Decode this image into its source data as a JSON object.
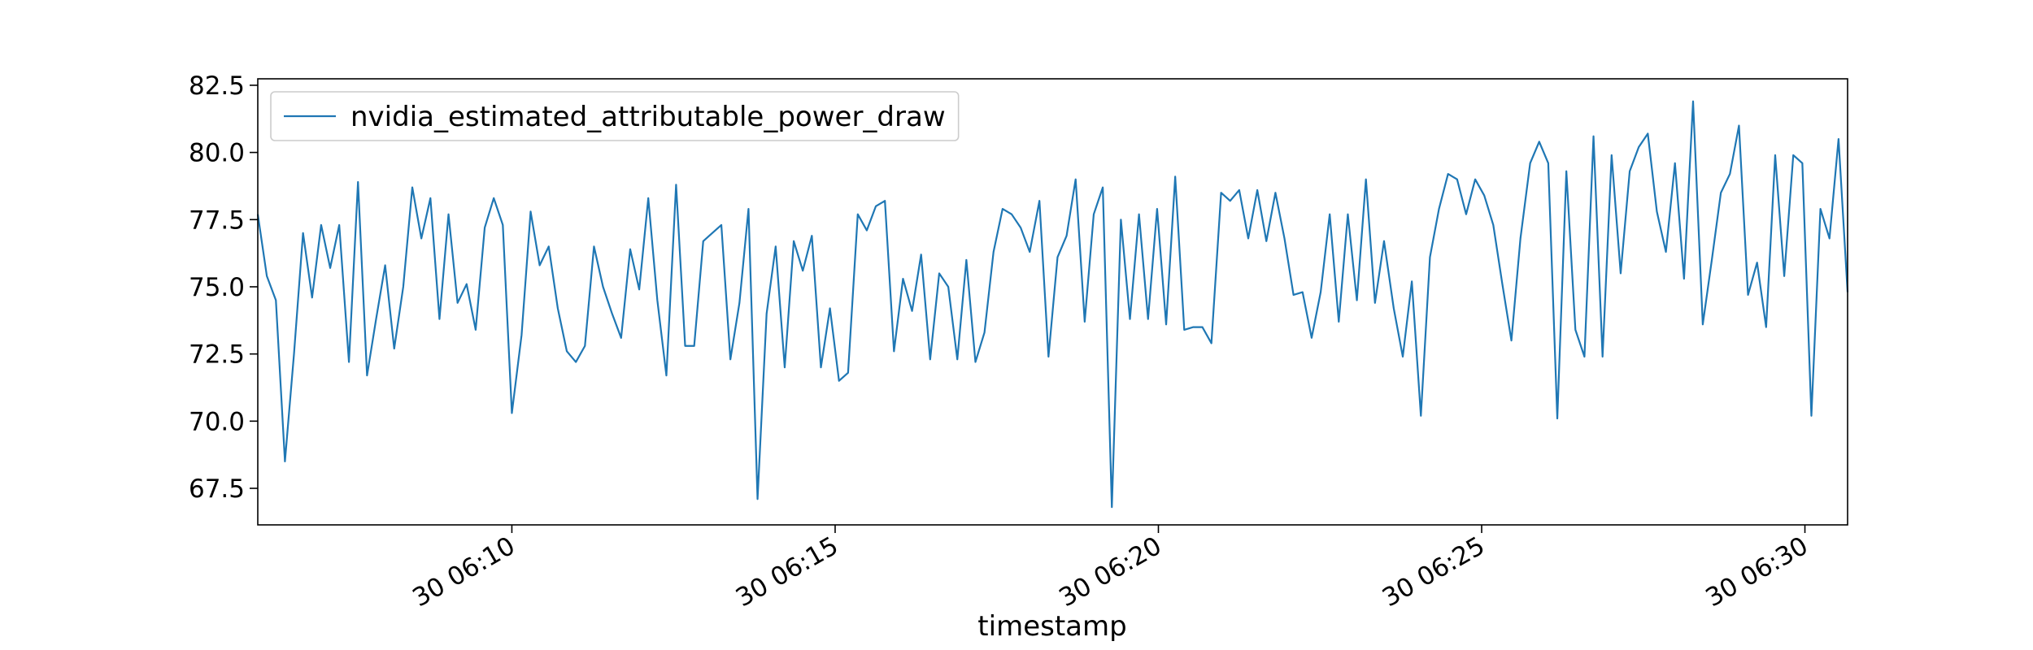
{
  "chart_data": {
    "type": "line",
    "xlabel": "timestamp",
    "legend": "upper left",
    "grid": false,
    "xlim": [
      6.07,
      30.66
    ],
    "ylim": [
      66.14,
      82.74
    ],
    "xticks": [
      {
        "value": 10,
        "label": "30 06:10"
      },
      {
        "value": 15,
        "label": "30 06:15"
      },
      {
        "value": 20,
        "label": "30 06:20"
      },
      {
        "value": 25,
        "label": "30 06:25"
      },
      {
        "value": 30,
        "label": "30 06:30"
      }
    ],
    "yticks": [
      {
        "value": 67.5,
        "label": "67.5"
      },
      {
        "value": 70,
        "label": "70.0"
      },
      {
        "value": 72.5,
        "label": "72.5"
      },
      {
        "value": 75,
        "label": "75.0"
      },
      {
        "value": 77.5,
        "label": "77.5"
      },
      {
        "value": 80,
        "label": "80.0"
      },
      {
        "value": 82.5,
        "label": "82.5"
      }
    ],
    "x": [
      6.07,
      6.21,
      6.35,
      6.49,
      6.63,
      6.77,
      6.91,
      7.05,
      7.19,
      7.33,
      7.48,
      7.62,
      7.76,
      7.9,
      8.04,
      8.18,
      8.32,
      8.46,
      8.6,
      8.74,
      8.88,
      9.02,
      9.16,
      9.3,
      9.44,
      9.58,
      9.72,
      9.86,
      10.0,
      10.15,
      10.29,
      10.43,
      10.57,
      10.71,
      10.85,
      10.99,
      11.13,
      11.27,
      11.41,
      11.55,
      11.69,
      11.83,
      11.97,
      12.11,
      12.25,
      12.39,
      12.54,
      12.68,
      12.82,
      12.96,
      13.1,
      13.24,
      13.38,
      13.52,
      13.66,
      13.8,
      13.94,
      14.08,
      14.22,
      14.36,
      14.5,
      14.64,
      14.78,
      14.92,
      15.06,
      15.2,
      15.35,
      15.49,
      15.63,
      15.77,
      15.91,
      16.05,
      16.19,
      16.33,
      16.47,
      16.61,
      16.75,
      16.89,
      17.03,
      17.17,
      17.31,
      17.45,
      17.59,
      17.73,
      17.87,
      18.01,
      18.16,
      18.3,
      18.44,
      18.58,
      18.72,
      18.86,
      19.0,
      19.14,
      19.28,
      19.42,
      19.56,
      19.7,
      19.84,
      19.98,
      20.12,
      20.26,
      20.4,
      20.54,
      20.68,
      20.82,
      20.97,
      21.11,
      21.25,
      21.39,
      21.53,
      21.67,
      21.81,
      21.95,
      22.09,
      22.23,
      22.37,
      22.51,
      22.65,
      22.79,
      22.93,
      23.07,
      23.21,
      23.35,
      23.49,
      23.64,
      23.78,
      23.92,
      24.06,
      24.2,
      24.34,
      24.48,
      24.62,
      24.76,
      24.9,
      25.04,
      25.18,
      25.32,
      25.46,
      25.6,
      25.75,
      25.89,
      26.03,
      26.17,
      26.31,
      26.45,
      26.59,
      26.73,
      26.87,
      27.01,
      27.15,
      27.29,
      27.43,
      27.57,
      27.71,
      27.85,
      27.99,
      28.13,
      28.27,
      28.42,
      28.56,
      28.7,
      28.84,
      28.98,
      29.12,
      29.26,
      29.4,
      29.54,
      29.68,
      29.82,
      29.96,
      30.1,
      30.24,
      30.38,
      30.52,
      30.66
    ],
    "series": [
      {
        "name": "nvidia_estimated_attributable_power_draw",
        "color": "#1f77b4",
        "values": [
          77.7,
          75.4,
          74.5,
          68.5,
          72.5,
          77.0,
          74.6,
          77.3,
          75.7,
          77.3,
          72.2,
          78.9,
          71.7,
          73.8,
          75.8,
          72.7,
          75.0,
          78.7,
          76.8,
          78.3,
          73.8,
          77.7,
          74.4,
          75.1,
          73.4,
          77.2,
          78.3,
          77.3,
          70.3,
          73.2,
          77.8,
          75.8,
          76.5,
          74.2,
          72.6,
          72.2,
          72.8,
          76.5,
          75.0,
          74.0,
          73.1,
          76.4,
          74.9,
          78.3,
          74.5,
          71.7,
          78.8,
          72.8,
          72.8,
          76.7,
          77.0,
          77.3,
          72.3,
          74.4,
          77.9,
          67.1,
          74.0,
          76.5,
          72.0,
          76.7,
          75.6,
          76.9,
          72.0,
          74.2,
          71.5,
          71.8,
          77.7,
          77.1,
          78.0,
          78.2,
          72.6,
          75.3,
          74.1,
          76.2,
          72.3,
          75.5,
          75.0,
          72.3,
          76.0,
          72.2,
          73.3,
          76.3,
          77.9,
          77.7,
          77.2,
          76.3,
          78.2,
          72.4,
          76.1,
          76.9,
          79.0,
          73.7,
          77.7,
          78.7,
          66.8,
          77.5,
          73.8,
          77.7,
          73.8,
          77.9,
          73.6,
          79.1,
          73.4,
          73.5,
          73.5,
          72.9,
          78.5,
          78.2,
          78.6,
          76.8,
          78.6,
          76.7,
          78.5,
          76.8,
          74.7,
          74.8,
          73.1,
          74.8,
          77.7,
          73.7,
          77.7,
          74.5,
          79.0,
          74.4,
          76.7,
          74.2,
          72.4,
          75.2,
          70.2,
          76.1,
          77.9,
          79.2,
          79.0,
          77.7,
          79.0,
          78.4,
          77.3,
          75.1,
          73.0,
          76.8,
          79.6,
          80.4,
          79.6,
          70.1,
          79.3,
          73.4,
          72.4,
          80.6,
          72.4,
          79.9,
          75.5,
          79.3,
          80.2,
          80.7,
          77.8,
          76.3,
          79.6,
          75.3,
          81.9,
          73.6,
          76.0,
          78.5,
          79.2,
          81.0,
          74.7,
          75.9,
          73.5,
          79.9,
          75.4,
          79.9,
          79.6,
          70.2,
          77.9,
          76.8,
          80.5,
          74.8
        ]
      }
    ]
  }
}
